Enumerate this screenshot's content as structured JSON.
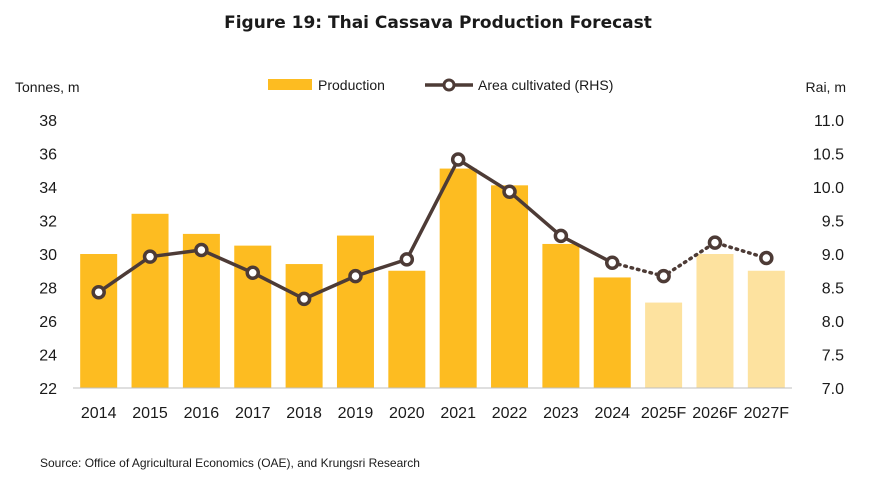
{
  "chart_data": {
    "type": "bar",
    "title": "Figure 19: Thai Cassava Production Forecast",
    "ylabel_left": "Tonnes, m",
    "ylabel_right": "Rai, m",
    "ylim_left": [
      22,
      38
    ],
    "yticks_left": [
      "22",
      "24",
      "26",
      "28",
      "30",
      "32",
      "34",
      "36",
      "38"
    ],
    "ylim_right": [
      7.0,
      11.0
    ],
    "yticks_right": [
      "7.0",
      "7.5",
      "8.0",
      "8.5",
      "9.0",
      "9.5",
      "10.0",
      "10.5",
      "11.0"
    ],
    "categories": [
      "2014",
      "2015",
      "2016",
      "2017",
      "2018",
      "2019",
      "2020",
      "2021",
      "2022",
      "2023",
      "2024",
      "2025F",
      "2026F",
      "2027F"
    ],
    "forecast_from_index": 11,
    "series": [
      {
        "name": "Production",
        "type": "bar",
        "axis": "left",
        "values": [
          30.0,
          32.4,
          31.2,
          30.5,
          29.4,
          31.1,
          29.0,
          35.1,
          34.1,
          30.6,
          28.6,
          27.1,
          30.0,
          29.0
        ]
      },
      {
        "name": "Area cultivated (RHS)",
        "type": "line",
        "axis": "right",
        "values": [
          8.43,
          8.96,
          9.06,
          8.72,
          8.33,
          8.67,
          8.92,
          10.41,
          9.93,
          9.27,
          8.87,
          8.67,
          9.17,
          8.94
        ]
      }
    ],
    "colors": {
      "bar_actual": "#fdbc21",
      "bar_forecast": "#fde29f",
      "line": "#4d3b36",
      "marker_fill": "#ffffff"
    },
    "legend_placement": "top-center",
    "grid": false
  },
  "source": "Source: Office of Agricultural Economics (OAE), and Krungsri Research"
}
